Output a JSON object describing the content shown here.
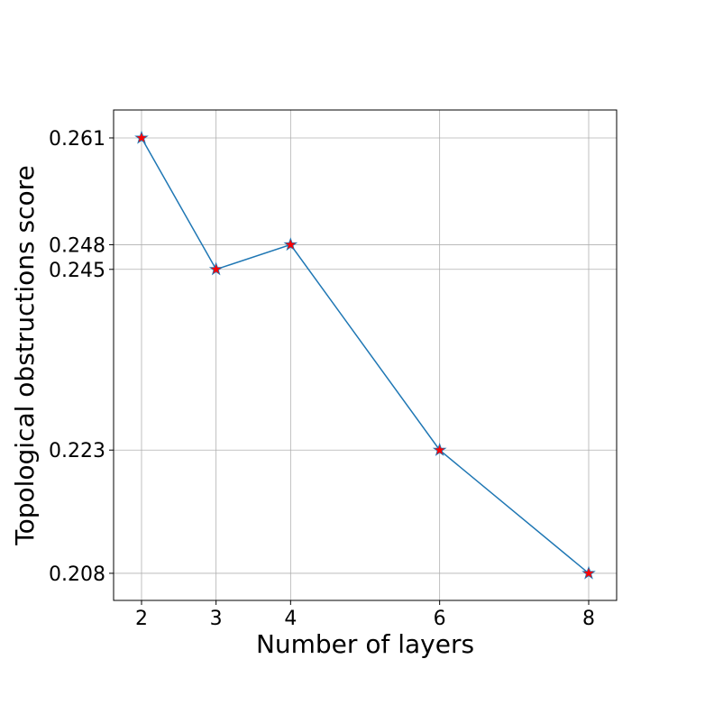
{
  "chart_data": {
    "type": "line",
    "xlabel": "Number of layers",
    "ylabel": "Topological obstructions score",
    "x": [
      2,
      3,
      4,
      6,
      8
    ],
    "values": [
      0.261,
      0.245,
      0.248,
      0.223,
      0.208
    ],
    "color": "#1f77b4",
    "marker_color": "#ff0000",
    "xlim": [
      1.625,
      8.375
    ],
    "ylim": [
      0.2047,
      0.2644
    ],
    "xticks": [
      2,
      3,
      4,
      6,
      8
    ],
    "yticks": [
      0.208,
      0.223,
      0.245,
      0.248,
      0.261
    ],
    "grid": true
  }
}
